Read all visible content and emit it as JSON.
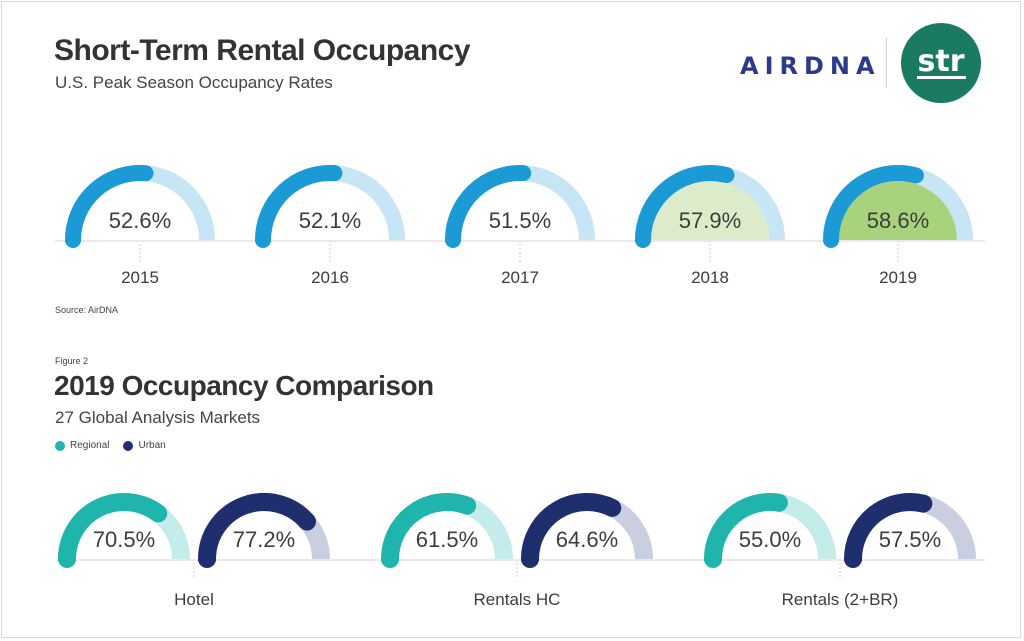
{
  "header": {
    "title": "Short-Term Rental Occupancy",
    "subtitle": "U.S. Peak Season Occupancy Rates",
    "source": "Source: AirDNA"
  },
  "logos": {
    "airdna": "AIRDNA",
    "str": "str"
  },
  "figure2": {
    "figure_label": "Figure 2",
    "title": "2019 Occupancy Comparison",
    "subtitle": "27 Global Analysis Markets",
    "legend": [
      {
        "label": "Regional",
        "color": "#1fb5ad"
      },
      {
        "label": "Urban",
        "color": "#1f2f6e"
      }
    ]
  },
  "colors": {
    "blue": "#1b9ad6",
    "blue_light": "#c6e5f5",
    "teal": "#1fb5ad",
    "teal_light": "#c4ecea",
    "navy": "#1f2f6e",
    "navy_light": "#c9cee0",
    "fill_2018": "#dcebc9",
    "fill_2019": "#a9d27c"
  },
  "chart_data": [
    {
      "type": "gauge",
      "title": "Short-Term Rental Occupancy",
      "categories": [
        "2015",
        "2016",
        "2017",
        "2018",
        "2019"
      ],
      "values": [
        52.6,
        52.1,
        51.5,
        57.9,
        58.6
      ],
      "value_labels": [
        "52.6%",
        "52.1%",
        "51.5%",
        "57.9%",
        "58.6%"
      ],
      "ylim": [
        0,
        100
      ]
    },
    {
      "type": "gauge",
      "title": "2019 Occupancy Comparison",
      "categories": [
        "Hotel",
        "Rentals HC",
        "Rentals (2+BR)"
      ],
      "series": [
        {
          "name": "Regional",
          "values": [
            70.5,
            61.5,
            55.0
          ],
          "value_labels": [
            "70.5%",
            "61.5%",
            "55.0%"
          ]
        },
        {
          "name": "Urban",
          "values": [
            77.2,
            64.6,
            57.5
          ],
          "value_labels": [
            "77.2%",
            "64.6%",
            "57.5%"
          ]
        }
      ],
      "ylim": [
        0,
        100
      ]
    }
  ]
}
